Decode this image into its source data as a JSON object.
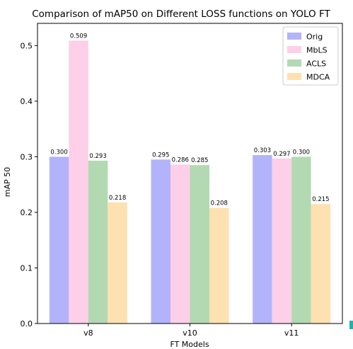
{
  "chart_data": {
    "type": "bar",
    "title": "Comparison of mAP50 on Different LOSS functions on YOLO FT",
    "xlabel": "FT Models",
    "ylabel": "mAP 50",
    "categories": [
      "v8",
      "v10",
      "v11"
    ],
    "ylim": [
      0,
      0.54
    ],
    "yticks": [
      0.0,
      0.1,
      0.2,
      0.3,
      0.4,
      0.5
    ],
    "ytick_labels": [
      "0.0",
      "0.1",
      "0.2",
      "0.3",
      "0.4",
      "0.5"
    ],
    "grid": false,
    "legend_position": "top-right",
    "series": [
      {
        "name": "Orig",
        "color": "#b3b3fb",
        "values": [
          0.3,
          0.295,
          0.303
        ],
        "labels": [
          "0.300",
          "0.295",
          "0.303"
        ]
      },
      {
        "name": "MbLS",
        "color": "#fdcfe8",
        "values": [
          0.509,
          0.286,
          0.297
        ],
        "labels": [
          "0.509",
          "0.286",
          "0.297"
        ]
      },
      {
        "name": "ACLS",
        "color": "#b3d9b3",
        "values": [
          0.293,
          0.285,
          0.3
        ],
        "labels": [
          "0.293",
          "0.285",
          "0.300"
        ]
      },
      {
        "name": "MDCA",
        "color": "#fde1b0",
        "values": [
          0.218,
          0.208,
          0.215
        ],
        "labels": [
          "0.218",
          "0.208",
          "0.215"
        ]
      }
    ]
  }
}
